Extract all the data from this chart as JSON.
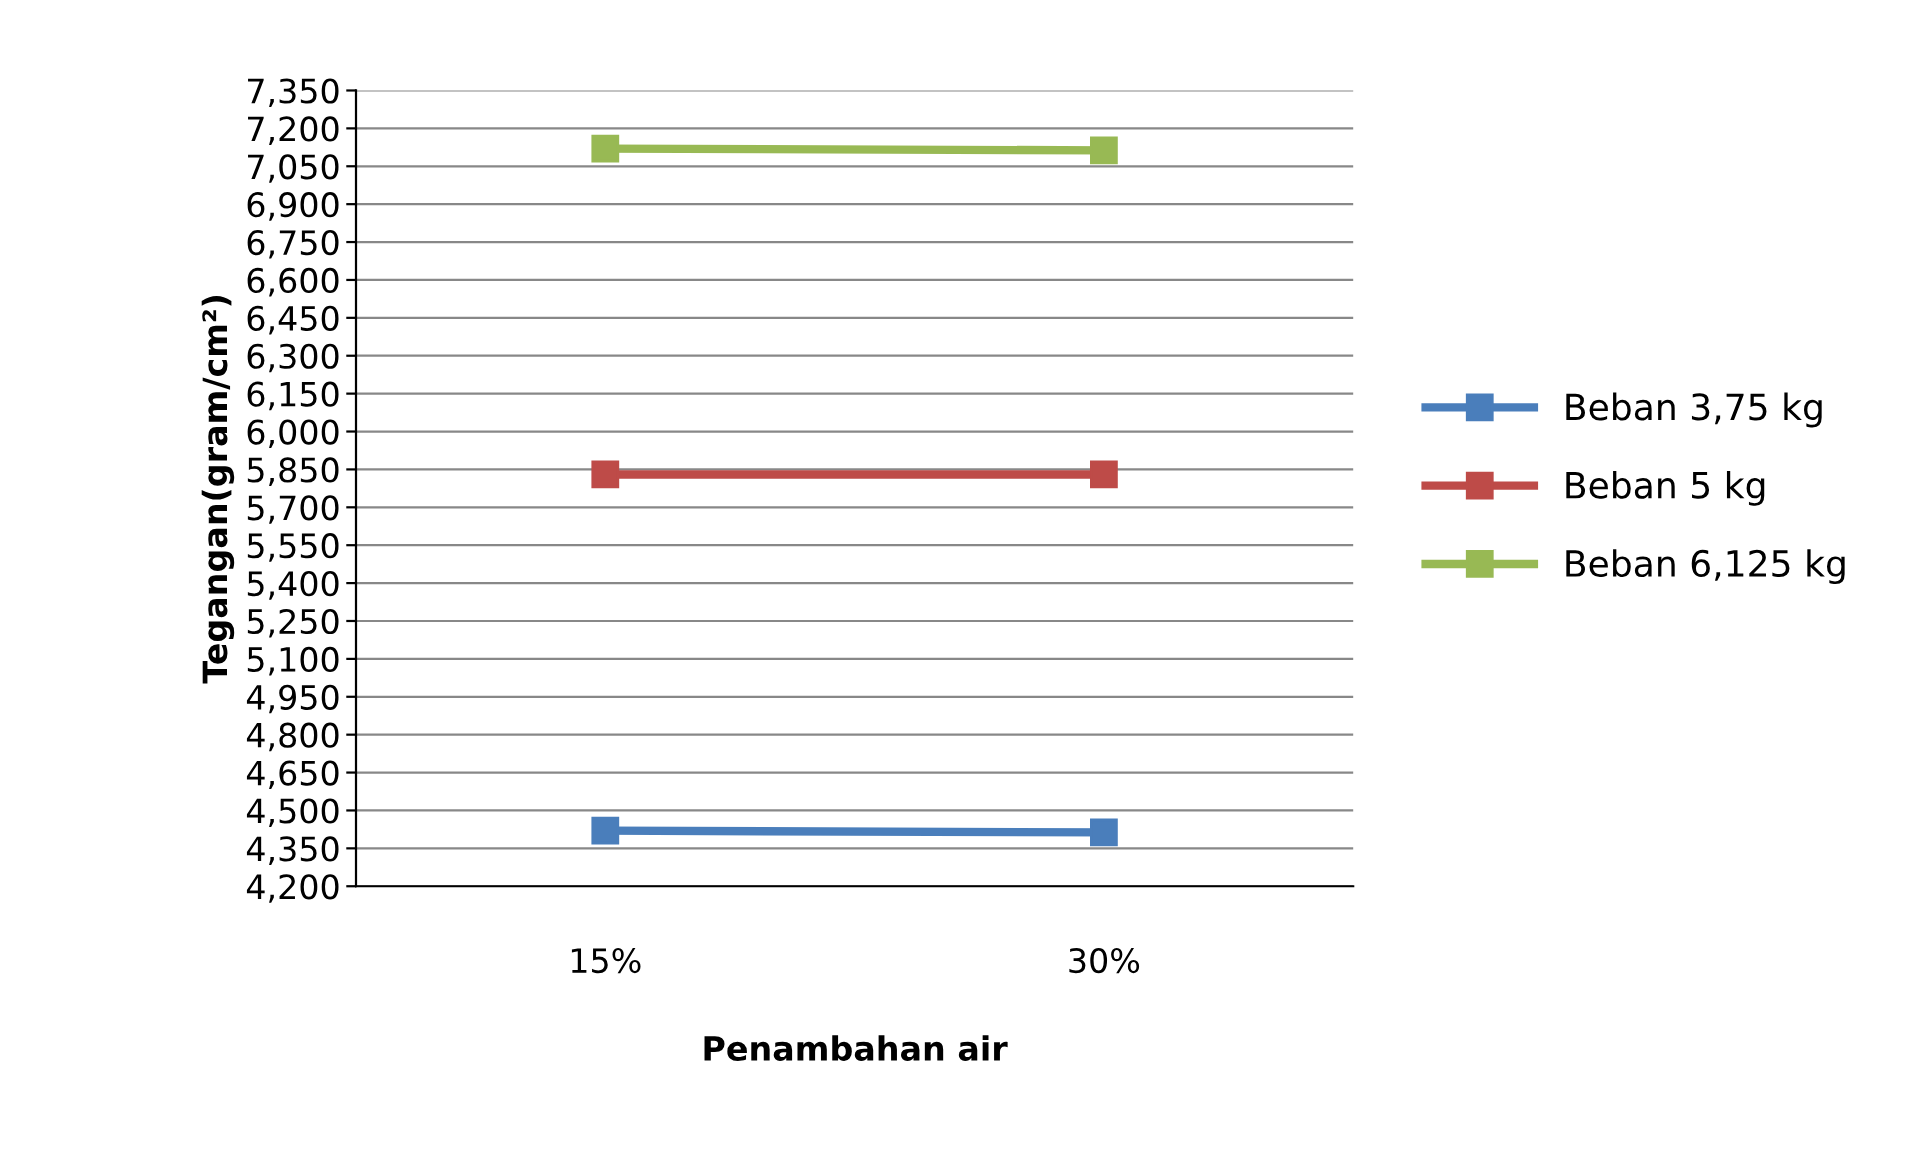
{
  "chart_data": {
    "type": "line",
    "xlabel": "Penambahan air",
    "ylabel": "Tegangan(gram/cm²)",
    "categories": [
      "15%",
      "30%"
    ],
    "series": [
      {
        "name": "Beban 3,75 kg",
        "color": "#4a7ebb",
        "values": [
          4420,
          4413
        ]
      },
      {
        "name": "Beban 5 kg",
        "color": "#be4b48",
        "values": [
          5830,
          5830
        ]
      },
      {
        "name": "Beban 6,125 kg",
        "color": "#98b954",
        "values": [
          7120,
          7113
        ]
      }
    ],
    "ylim": [
      4200,
      7350
    ],
    "yticks": [
      {
        "value": 4200,
        "label": "4,200"
      },
      {
        "value": 4350,
        "label": "4,350"
      },
      {
        "value": 4500,
        "label": "4,500"
      },
      {
        "value": 4650,
        "label": "4,650"
      },
      {
        "value": 4800,
        "label": "4,800"
      },
      {
        "value": 4950,
        "label": "4,950"
      },
      {
        "value": 5100,
        "label": "5,100"
      },
      {
        "value": 5250,
        "label": "5,250"
      },
      {
        "value": 5400,
        "label": "5,400"
      },
      {
        "value": 5550,
        "label": "5,550"
      },
      {
        "value": 5700,
        "label": "5,700"
      },
      {
        "value": 5850,
        "label": "5,850"
      },
      {
        "value": 6000,
        "label": "6,000"
      },
      {
        "value": 6150,
        "label": "6,150"
      },
      {
        "value": 6300,
        "label": "6,300"
      },
      {
        "value": 6450,
        "label": "6,450"
      },
      {
        "value": 6600,
        "label": "6,600"
      },
      {
        "value": 6750,
        "label": "6,750"
      },
      {
        "value": 6900,
        "label": "6,900"
      },
      {
        "value": 7050,
        "label": "7,050"
      },
      {
        "value": 7200,
        "label": "7,200"
      },
      {
        "value": 7350,
        "label": "7,350"
      }
    ],
    "grid": "y",
    "legend": "right",
    "marker": "square",
    "line_style": "solid"
  }
}
